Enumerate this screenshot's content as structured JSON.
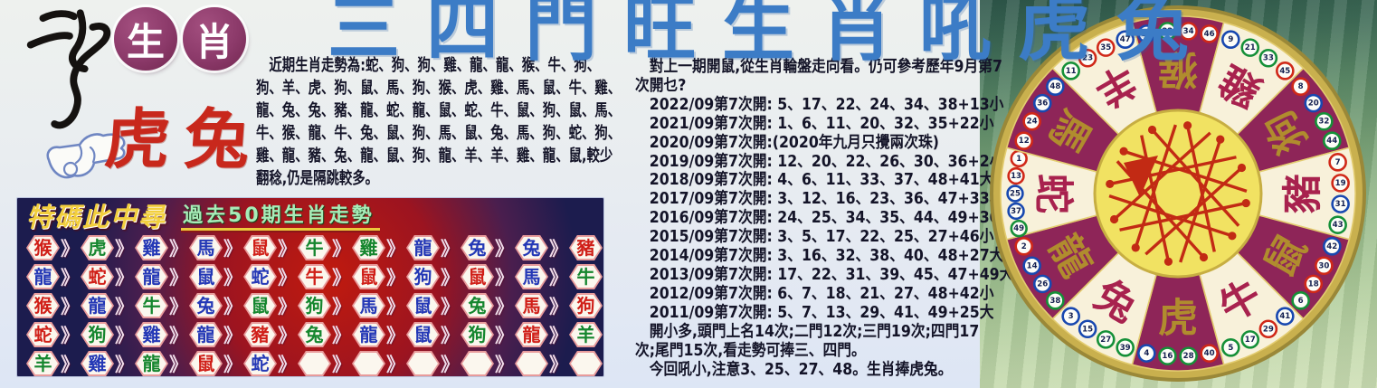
{
  "masthead": {
    "seal_icon": "calligraphy-seal",
    "badges": [
      "生",
      "肖"
    ],
    "badge_color": "#8c3a6a",
    "pointer_label": "虎兔",
    "pointer_color": "#c8281c"
  },
  "headline": {
    "text": "三四門旺生肖吼虎兔",
    "color": "#3c7cc6"
  },
  "left_article": {
    "lines": [
      "　近期生肖走勢為:蛇、狗、狗、雞、龍、龍、猴、牛、狗、",
      "狗、羊、虎、狗、鼠、馬、狗、猴、虎、雞、馬、鼠、牛、雞、",
      "龍、兔、兔、豬、龍、蛇、龍、鼠、蛇、牛、鼠、狗、鼠、馬、",
      "牛、猴、龍、牛、兔、鼠、狗、馬、鼠、兔、馬、狗、蛇、狗、",
      "雞、龍、豬、兔、龍、鼠、狗、龍、羊、羊、雞、龍、鼠,較少",
      "翻稔,仍是隔跳較多。"
    ]
  },
  "right_article": {
    "lines": [
      "　對上一期開鼠,從生肖輪盤走向看。仍可參考歷年9月第7",
      "次開乜?",
      "　2022/09第7次開: 5、17、22、24、34、38+13小",
      "　2021/09第7次開: 1、6、11、20、32、35+22小",
      "　2020/09第7次開:(2020年九月只攪兩次珠)",
      "　2019/09第7次開: 12、20、22、26、30、36+2小",
      "　2018/09第7次開: 4、6、11、33、37、48+41大",
      "　2017/09第7次開: 3、12、16、23、36、47+33小",
      "　2016/09第7次開: 24、25、34、35、44、49+30大",
      "　2015/09第7次開: 3、5、17、22、25、27+46小",
      "　2014/09第7次開: 3、16、32、38、40、48+27大",
      "　2013/09第7次開: 17、22、31、39、45、47+49大",
      "　2012/09第7次開: 6、7、18、21、27、48+42小",
      "　2011/09第7次開: 5、7、13、29、41、49+25大",
      "　開小多,頭門上名14次;二門12次;三門19次;四門17",
      "次;尾門15次,看走勢可捧三、四門。",
      "　今回吼小,注意3、25、27、48。生肖捧虎兔。"
    ]
  },
  "trend_table": {
    "title": "特碼此中尋",
    "subtitle": "過去50期生肖走勢",
    "title_color": "#f2cf3e",
    "subtitle_color": "#a7ecb8",
    "cell_colors": {
      "r": "#d01f18",
      "b": "#2438b6",
      "g": "#15862e"
    },
    "rows": [
      [
        {
          "c": "猴",
          "k": "r"
        },
        {
          "c": "虎",
          "k": "g"
        },
        {
          "c": "雞",
          "k": "b"
        },
        {
          "c": "馬",
          "k": "b"
        },
        {
          "c": "鼠",
          "k": "r"
        },
        {
          "c": "牛",
          "k": "g"
        },
        {
          "c": "雞",
          "k": "g"
        },
        {
          "c": "龍",
          "k": "b"
        },
        {
          "c": "兔",
          "k": "b"
        },
        {
          "c": "兔",
          "k": "b"
        },
        {
          "c": "豬",
          "k": "r"
        }
      ],
      [
        {
          "c": "龍",
          "k": "b"
        },
        {
          "c": "蛇",
          "k": "r"
        },
        {
          "c": "龍",
          "k": "b"
        },
        {
          "c": "鼠",
          "k": "b"
        },
        {
          "c": "蛇",
          "k": "b"
        },
        {
          "c": "牛",
          "k": "r"
        },
        {
          "c": "鼠",
          "k": "r"
        },
        {
          "c": "狗",
          "k": "b"
        },
        {
          "c": "鼠",
          "k": "r"
        },
        {
          "c": "馬",
          "k": "b"
        },
        {
          "c": "牛",
          "k": "g"
        }
      ],
      [
        {
          "c": "猴",
          "k": "r"
        },
        {
          "c": "龍",
          "k": "b"
        },
        {
          "c": "牛",
          "k": "g"
        },
        {
          "c": "兔",
          "k": "b"
        },
        {
          "c": "鼠",
          "k": "g"
        },
        {
          "c": "狗",
          "k": "g"
        },
        {
          "c": "馬",
          "k": "b"
        },
        {
          "c": "鼠",
          "k": "b"
        },
        {
          "c": "兔",
          "k": "g"
        },
        {
          "c": "馬",
          "k": "r"
        },
        {
          "c": "狗",
          "k": "r"
        }
      ],
      [
        {
          "c": "蛇",
          "k": "r"
        },
        {
          "c": "狗",
          "k": "g"
        },
        {
          "c": "雞",
          "k": "b"
        },
        {
          "c": "龍",
          "k": "b"
        },
        {
          "c": "豬",
          "k": "r"
        },
        {
          "c": "兔",
          "k": "g"
        },
        {
          "c": "龍",
          "k": "b"
        },
        {
          "c": "鼠",
          "k": "b"
        },
        {
          "c": "狗",
          "k": "g"
        },
        {
          "c": "龍",
          "k": "r"
        },
        {
          "c": "羊",
          "k": "g"
        }
      ],
      [
        {
          "c": "羊",
          "k": "g"
        },
        {
          "c": "雞",
          "k": "b"
        },
        {
          "c": "龍",
          "k": "g"
        },
        {
          "c": "鼠",
          "k": "r"
        },
        {
          "c": "蛇",
          "k": "b"
        },
        {
          "c": "",
          "k": ""
        },
        {
          "c": "",
          "k": ""
        },
        {
          "c": "",
          "k": ""
        },
        {
          "c": "",
          "k": ""
        },
        {
          "c": "",
          "k": ""
        },
        {
          "c": "",
          "k": ""
        }
      ]
    ]
  },
  "wheel": {
    "sectors": [
      {
        "zodiac": "猴",
        "numbers": [
          10,
          22,
          34,
          46
        ],
        "style": "maroon"
      },
      {
        "zodiac": "雞",
        "numbers": [
          9,
          21,
          33,
          45
        ],
        "style": "cream"
      },
      {
        "zodiac": "狗",
        "numbers": [
          8,
          20,
          32,
          44
        ],
        "style": "maroon"
      },
      {
        "zodiac": "豬",
        "numbers": [
          7,
          19,
          31,
          43
        ],
        "style": "cream"
      },
      {
        "zodiac": "鼠",
        "numbers": [
          6,
          18,
          30,
          42
        ],
        "style": "maroon"
      },
      {
        "zodiac": "牛",
        "numbers": [
          5,
          17,
          29,
          41
        ],
        "style": "cream"
      },
      {
        "zodiac": "虎",
        "numbers": [
          4,
          16,
          28,
          40
        ],
        "style": "maroon"
      },
      {
        "zodiac": "兔",
        "numbers": [
          3,
          15,
          27,
          39
        ],
        "style": "cream"
      },
      {
        "zodiac": "龍",
        "numbers": [
          2,
          14,
          26,
          38
        ],
        "style": "maroon"
      },
      {
        "zodiac": "蛇",
        "numbers": [
          1,
          13,
          25,
          37,
          49
        ],
        "style": "cream"
      },
      {
        "zodiac": "馬",
        "numbers": [
          12,
          24,
          36,
          48
        ],
        "style": "maroon"
      },
      {
        "zodiac": "羊",
        "numbers": [
          11,
          23,
          35,
          47
        ],
        "style": "cream"
      }
    ],
    "ball_number_colors": {
      "red": [
        1,
        2,
        7,
        8,
        12,
        13,
        18,
        19,
        23,
        24,
        29,
        30,
        34,
        35,
        40,
        45,
        46
      ],
      "blue": [
        3,
        4,
        9,
        10,
        14,
        15,
        20,
        25,
        26,
        31,
        36,
        37,
        41,
        42,
        47,
        48
      ],
      "green": [
        5,
        6,
        11,
        16,
        17,
        21,
        22,
        27,
        28,
        32,
        33,
        38,
        39,
        43,
        44,
        49
      ]
    },
    "colors": {
      "maroon": "#8e2558",
      "cream": "#f8f1da",
      "ring": "#c9b04e",
      "center": "#f1e262",
      "line": "#c22a14",
      "ball_red": "#d02818",
      "ball_blue": "#1848b0",
      "ball_green": "#159038"
    }
  }
}
